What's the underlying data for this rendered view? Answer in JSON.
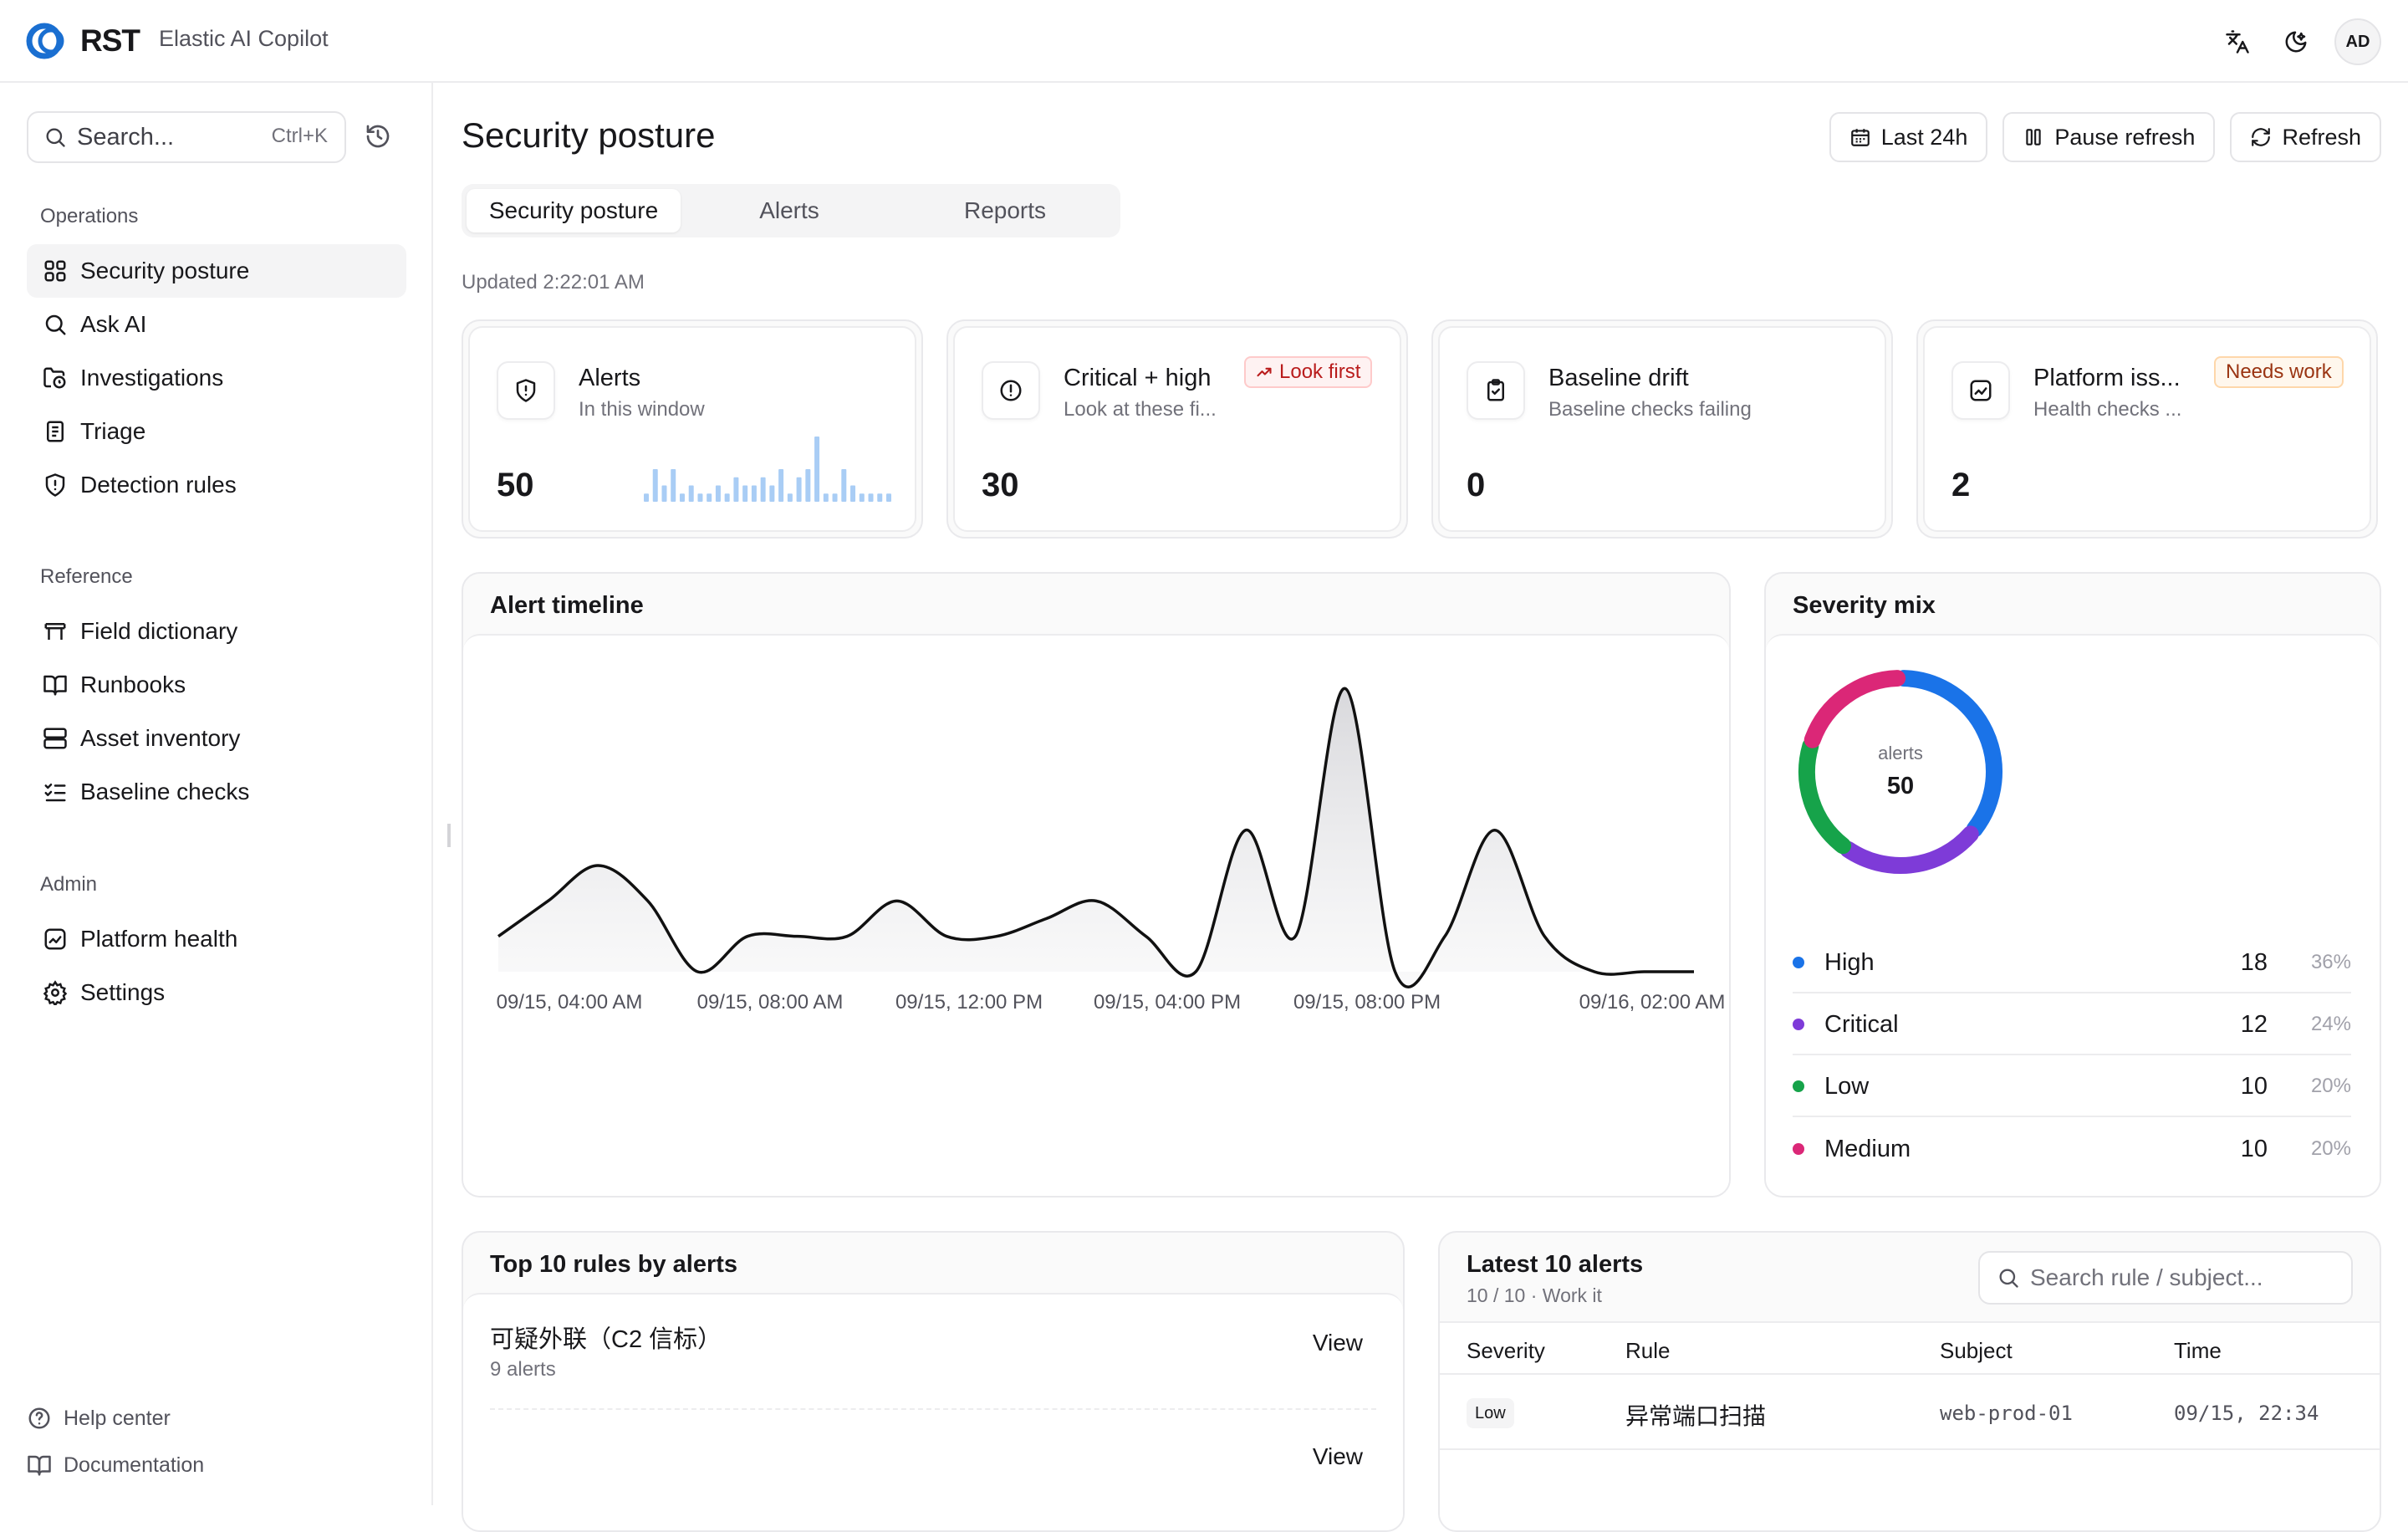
{
  "app": {
    "logo_text": "RST",
    "product": "Elastic AI Copilot"
  },
  "header": {
    "avatar": "AD",
    "icons": [
      "translate-icon",
      "theme-toggle-icon"
    ]
  },
  "sidebar": {
    "search": {
      "placeholder": "Search...",
      "shortcut": "Ctrl+K"
    },
    "sections": [
      {
        "label": "Operations",
        "items": [
          {
            "label": "Security posture",
            "icon": "dashboard-icon",
            "active": true
          },
          {
            "label": "Ask AI",
            "icon": "search-icon"
          },
          {
            "label": "Investigations",
            "icon": "folder-clock-icon"
          },
          {
            "label": "Triage",
            "icon": "clipboard-icon"
          },
          {
            "label": "Detection rules",
            "icon": "shield-icon"
          }
        ]
      },
      {
        "label": "Reference",
        "items": [
          {
            "label": "Field dictionary",
            "icon": "table-icon"
          },
          {
            "label": "Runbooks",
            "icon": "book-icon"
          },
          {
            "label": "Asset inventory",
            "icon": "server-icon"
          },
          {
            "label": "Baseline checks",
            "icon": "list-checks-icon"
          }
        ]
      },
      {
        "label": "Admin",
        "items": [
          {
            "label": "Platform health",
            "icon": "activity-icon"
          },
          {
            "label": "Settings",
            "icon": "gear-icon"
          }
        ]
      }
    ],
    "footer": [
      {
        "label": "Help center",
        "icon": "help-icon"
      },
      {
        "label": "Documentation",
        "icon": "book-icon"
      }
    ]
  },
  "page": {
    "title": "Security posture",
    "buttons": {
      "range": "Last 24h",
      "pause": "Pause refresh",
      "refresh": "Refresh"
    },
    "tabs": [
      {
        "label": "Security posture",
        "active": true
      },
      {
        "label": "Alerts"
      },
      {
        "label": "Reports"
      }
    ],
    "updated": "Updated 2:22:01 AM"
  },
  "kpis": [
    {
      "title": "Alerts",
      "subtitle": "In this window",
      "value": "50",
      "icon": "shield-icon"
    },
    {
      "title": "Critical + high",
      "subtitle": "Look at these fi...",
      "value": "30",
      "badge": "Look first",
      "icon": "alert-circle-icon"
    },
    {
      "title": "Baseline drift",
      "subtitle": "Baseline checks failing",
      "value": "0",
      "icon": "clipboard-check-icon"
    },
    {
      "title": "Platform iss...",
      "subtitle": "Health checks ...",
      "value": "2",
      "badge": "Needs work",
      "icon": "activity-icon"
    }
  ],
  "sparkline": [
    1,
    4,
    2,
    4,
    1,
    2,
    1,
    1,
    2,
    1,
    3,
    2,
    2,
    3,
    2,
    4,
    1,
    3,
    4,
    8,
    1,
    1,
    4,
    2,
    1,
    1,
    1,
    1
  ],
  "timeline": {
    "title": "Alert timeline",
    "tick_labels": [
      "09/15, 04:00 AM",
      "09/15, 08:00 AM",
      "09/15, 12:00 PM",
      "09/15, 04:00 PM",
      "09/15, 08:00 PM",
      "09/16, 02:00 AM"
    ]
  },
  "chart_data": {
    "type": "area",
    "title": "Alert timeline",
    "xlabel": "",
    "ylabel": "",
    "x": [
      "09/15 02:00",
      "09/15 03:00",
      "09/15 04:00",
      "09/15 05:00",
      "09/15 06:00",
      "09/15 07:00",
      "09/15 08:00",
      "09/15 09:00",
      "09/15 10:00",
      "09/15 11:00",
      "09/15 12:00",
      "09/15 13:00",
      "09/15 14:00",
      "09/15 15:00",
      "09/15 16:00",
      "09/15 17:00",
      "09/15 18:00",
      "09/15 19:00",
      "09/15 20:00",
      "09/15 21:00",
      "09/15 22:00",
      "09/15 23:00",
      "09/16 00:00",
      "09/16 01:00",
      "09/16 02:00"
    ],
    "series": [
      {
        "values": [
          1,
          2,
          3,
          2,
          0,
          1,
          1,
          1,
          2,
          1,
          1,
          1.5,
          2,
          1,
          0,
          4,
          1,
          8,
          0,
          1,
          4,
          1,
          0,
          0,
          0
        ]
      }
    ],
    "ylim": [
      0,
      8.6
    ],
    "grid": false,
    "legend": "none"
  },
  "severity": {
    "title": "Severity mix",
    "center_label": "alerts",
    "total": "50",
    "items": [
      {
        "name": "High",
        "count": "18",
        "pct": "36%",
        "color": "#1a73e8"
      },
      {
        "name": "Critical",
        "count": "12",
        "pct": "24%",
        "color": "#7e3bd8"
      },
      {
        "name": "Low",
        "count": "10",
        "pct": "20%",
        "color": "#16a34a"
      },
      {
        "name": "Medium",
        "count": "10",
        "pct": "20%",
        "color": "#db2777"
      }
    ]
  },
  "top_rules": {
    "title": "Top 10 rules by alerts",
    "rows": [
      {
        "name": "可疑外联（C2 信标）",
        "sub": "9 alerts",
        "action": "View"
      },
      {
        "name": "",
        "sub": "",
        "action": "View"
      }
    ]
  },
  "latest": {
    "title": "Latest 10 alerts",
    "subtitle": "10 / 10 · Work it",
    "search_placeholder": "Search rule / subject...",
    "columns": [
      "Severity",
      "Rule",
      "Subject",
      "Time"
    ],
    "rows": [
      {
        "severity": "Low",
        "rule": "异常端口扫描",
        "subject": "web-prod-01",
        "time": "09/15, 22:34"
      }
    ]
  }
}
